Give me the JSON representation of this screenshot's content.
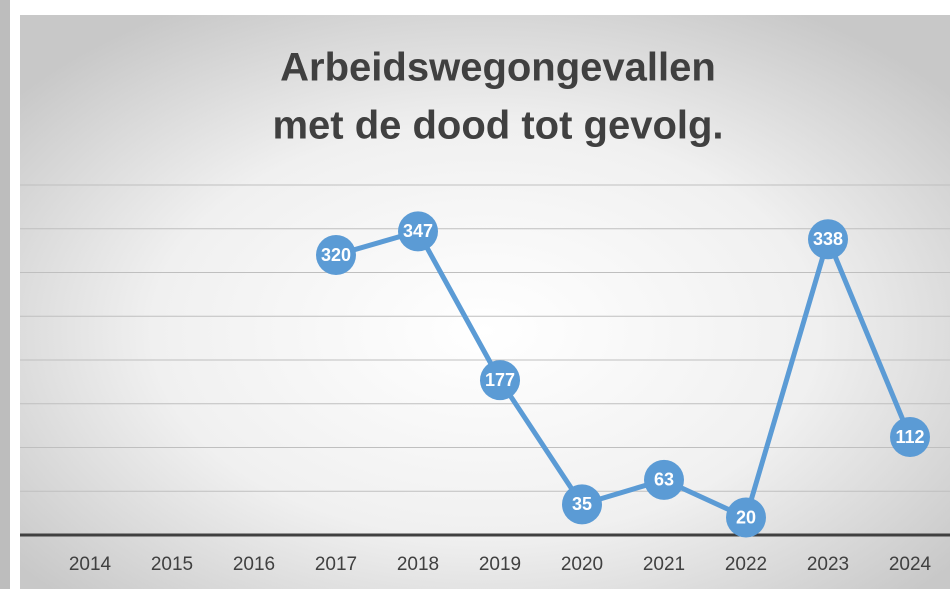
{
  "chart_data": {
    "type": "line",
    "title": [
      "Arbeidswegongevallen",
      "met de dood tot gevolg."
    ],
    "categories": [
      "2014",
      "2015",
      "2016",
      "2017",
      "2018",
      "2019",
      "2020",
      "2021",
      "2022",
      "2023",
      "2024"
    ],
    "series": [
      {
        "name": "Arbeidswegongevallen",
        "color": "#5b9bd5",
        "values": [
          null,
          null,
          null,
          320,
          347,
          177,
          35,
          63,
          20,
          338,
          112
        ]
      }
    ],
    "ylim": [
      0,
      400
    ],
    "yticks": [
      0,
      50,
      100,
      150,
      200,
      250,
      300,
      350,
      400
    ],
    "grid": true
  }
}
